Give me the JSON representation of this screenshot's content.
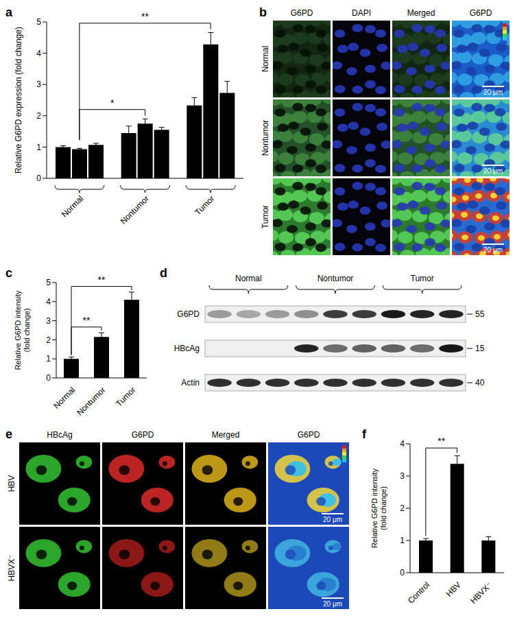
{
  "chart_data": [
    {
      "type": "bar",
      "title": "a",
      "ylabel": "Relative G6PD expression (fold change)",
      "categories": [
        "Normal",
        "Nontumor",
        "Tumor"
      ],
      "values": [
        [
          1.0,
          0.93,
          1.07
        ],
        [
          1.45,
          1.75,
          1.55
        ],
        [
          2.33,
          4.28,
          2.73
        ]
      ],
      "errors": [
        [
          0.04,
          0.03,
          0.05
        ],
        [
          0.22,
          0.15,
          0.08
        ],
        [
          0.25,
          0.38,
          0.37
        ]
      ],
      "color": "#000000",
      "ylim": [
        0,
        5
      ],
      "yticks": [
        0,
        1,
        2,
        3,
        4,
        5
      ],
      "grid": false,
      "significance": [
        {
          "between": [
            0,
            1
          ],
          "label": "*"
        },
        {
          "between": [
            0,
            2
          ],
          "label": "**"
        }
      ]
    },
    {
      "type": "bar",
      "title": "c",
      "ylabel": "Relative G6PD intensity (fold change)",
      "categories": [
        "Normal",
        "Nontumor",
        "Tumor"
      ],
      "values": [
        1.0,
        2.15,
        4.1
      ],
      "errors": [
        0.1,
        0.22,
        0.4
      ],
      "color": "#000000",
      "ylim": [
        0,
        5
      ],
      "yticks": [
        0,
        1,
        2,
        3,
        4,
        5
      ],
      "grid": false,
      "significance": [
        {
          "between": [
            0,
            1
          ],
          "label": "**"
        },
        {
          "between": [
            0,
            2
          ],
          "label": "**"
        }
      ]
    },
    {
      "type": "bar",
      "title": "f",
      "ylabel": "Relative G6PD intensity (fold change)",
      "categories": [
        "Control",
        "HBV",
        "HBVX⁻"
      ],
      "values": [
        1.0,
        3.38,
        1.0
      ],
      "errors": [
        0.06,
        0.25,
        0.12
      ],
      "color": "#000000",
      "ylim": [
        0,
        4
      ],
      "yticks": [
        0,
        1,
        2,
        3,
        4
      ],
      "grid": false,
      "significance": [
        {
          "between": [
            0,
            1
          ],
          "label": "**"
        }
      ]
    }
  ],
  "images": {
    "b": {
      "title": "b",
      "columns": [
        "G6PD",
        "DAPI",
        "Merged",
        "G6PD"
      ],
      "rows": [
        "Normal",
        "Nontumor",
        "Tumor"
      ],
      "scale_bar": "20 μm"
    },
    "d": {
      "title": "d",
      "groups": [
        "Normal",
        "Nontumor",
        "Tumor"
      ],
      "rows": [
        {
          "label": "G6PD",
          "marker": 55,
          "intensity": [
            0.35,
            0.3,
            0.35,
            0.4,
            0.75,
            0.75,
            0.9,
            0.85,
            0.85
          ]
        },
        {
          "label": "HBcAg",
          "marker": 15,
          "intensity": [
            0,
            0,
            0,
            0.85,
            0.55,
            0.6,
            0.6,
            0.55,
            0.9
          ]
        },
        {
          "label": "Actin",
          "marker": 40,
          "intensity": [
            0.8,
            0.8,
            0.8,
            0.8,
            0.8,
            0.8,
            0.8,
            0.8,
            0.8
          ]
        }
      ]
    },
    "e": {
      "title": "e",
      "columns": [
        "HBcAg",
        "G6PD",
        "Merged",
        "G6PD"
      ],
      "rows": [
        "HBV",
        "HBVX⁻"
      ],
      "scale_bar": "20 μm"
    }
  }
}
